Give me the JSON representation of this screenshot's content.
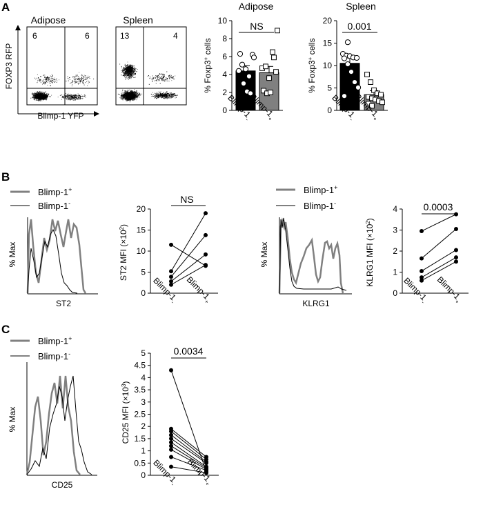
{
  "panels": {
    "a": "A",
    "b": "B",
    "c": "C"
  },
  "flow": {
    "titles": [
      "Adipose",
      "Spleen"
    ],
    "ylabel": "FOXP3 RFP",
    "xlabel": "Blimp-1 YFP",
    "adipose_quadrants": {
      "upper_left": "6",
      "upper_right": "6"
    },
    "spleen_quadrants": {
      "upper_left": "13",
      "upper_right": "4"
    }
  },
  "legends": {
    "b1": {
      "pos": "Blimp-1",
      "pos_sup": "+",
      "neg": "Blimp-1",
      "neg_sup": "-"
    },
    "b2": {
      "pos": "Blimp-1",
      "pos_sup": "+",
      "neg": "Blimp-1",
      "neg_sup": "-"
    },
    "c": {
      "pos": "Blimp-1",
      "pos_sup": "+",
      "neg": "Blimp-1",
      "neg_sup": "-"
    }
  },
  "histograms": [
    {
      "ylabel": "% Max",
      "xlabel": "ST2"
    },
    {
      "ylabel": "% Max",
      "xlabel": "KLRG1"
    },
    {
      "ylabel": "% Max",
      "xlabel": "CD25"
    }
  ],
  "colors": {
    "negative_bar": "#000000",
    "positive_bar": "#808080",
    "pos_line": "#808080",
    "neg_line": "#000000"
  },
  "chart_data": [
    {
      "type": "bar",
      "title": "Adipose",
      "ylabel": "% Foxp3+ cells",
      "ylabel_main": "% Foxp3",
      "ylabel_sup": "+",
      "ylabel_tail": " cells",
      "ylim": [
        0,
        10
      ],
      "yticks": [
        0,
        2,
        4,
        6,
        8,
        10
      ],
      "categories": [
        "Blimp-1-",
        "Blimp-1+"
      ],
      "category_labels": [
        {
          "main": "Blimp-1",
          "sup": "-"
        },
        {
          "main": "Blimp-1",
          "sup": "+"
        }
      ],
      "values": [
        4.4,
        4.2
      ],
      "errors": [
        0.6,
        0.7
      ],
      "points": [
        [
          4.4,
          5.1,
          4.6,
          3.8,
          6.2,
          6.3,
          3.0,
          2.1,
          1.9,
          5.9
        ],
        [
          4.7,
          4.9,
          3.6,
          6.5,
          4.3,
          2.2,
          1.9,
          2.0,
          5.9,
          8.9
        ]
      ],
      "annotation": "NS"
    },
    {
      "type": "bar",
      "title": "Spleen",
      "ylabel": "% Foxp3+ cells",
      "ylabel_main": "% Foxp3",
      "ylabel_sup": "+",
      "ylabel_tail": " cells",
      "ylim": [
        0,
        20
      ],
      "yticks": [
        0,
        5,
        10,
        15,
        20
      ],
      "categories": [
        "Blimp-1-",
        "Blimp-1+"
      ],
      "category_labels": [
        {
          "main": "Blimp-1",
          "sup": "-"
        },
        {
          "main": "Blimp-1",
          "sup": "+"
        }
      ],
      "values": [
        10.5,
        3.5
      ],
      "errors": [
        1.2,
        0.9
      ],
      "points": [
        [
          12.6,
          12.2,
          12.1,
          11.8,
          11.7,
          11.6,
          10.3,
          8.6,
          6.3,
          5.1,
          3.2,
          15.2
        ],
        [
          8.0,
          6.3,
          4.5,
          3.8,
          3.5,
          3.0,
          2.7,
          2.4,
          2.1,
          1.8,
          1.5,
          1.0
        ]
      ],
      "annotation": "0.001"
    },
    {
      "type": "line",
      "ylabel": "ST2 MFI (×10²)",
      "ylabel_main": "ST2 MFI (×10",
      "ylabel_sup": "2",
      "ylabel_tail": ")",
      "ylim": [
        0,
        20
      ],
      "yticks": [
        0,
        5,
        10,
        15,
        20
      ],
      "categories": [
        "Blimp-1-",
        "Blimp-1+"
      ],
      "category_labels": [
        {
          "main": "Blimp-1",
          "sup": "-"
        },
        {
          "main": "Blimp-1",
          "sup": "+"
        }
      ],
      "pairs": [
        [
          11.5,
          6.5
        ],
        [
          5.2,
          19.0
        ],
        [
          3.9,
          13.8
        ],
        [
          2.8,
          9.2
        ],
        [
          2.0,
          6.7
        ]
      ],
      "annotation": "NS"
    },
    {
      "type": "line",
      "ylabel": "KLRG1 MFI (×10²)",
      "ylabel_main": "KLRG1 MFI (×10",
      "ylabel_sup": "2",
      "ylabel_tail": ")",
      "ylim": [
        0,
        4
      ],
      "yticks": [
        0,
        1,
        2,
        3,
        4
      ],
      "categories": [
        "Blimp-1-",
        "Blimp-1+"
      ],
      "category_labels": [
        {
          "main": "Blimp-1",
          "sup": "-"
        },
        {
          "main": "Blimp-1",
          "sup": "+"
        }
      ],
      "pairs": [
        [
          2.95,
          3.75
        ],
        [
          1.65,
          3.05
        ],
        [
          1.05,
          2.05
        ],
        [
          0.75,
          1.7
        ],
        [
          0.6,
          1.5
        ]
      ],
      "annotation": "0.0003"
    },
    {
      "type": "line",
      "ylabel": "CD25 MFI (×10³)",
      "ylabel_main": "CD25 MFI (×10",
      "ylabel_sup": "3",
      "ylabel_tail": ")",
      "ylim": [
        0,
        5
      ],
      "yticks": [
        0,
        0.5,
        1,
        1.5,
        2,
        2.5,
        3,
        3.5,
        4,
        4.5,
        5
      ],
      "ytick_labels": [
        "0",
        "0.5",
        "1",
        "1.5",
        "2",
        "2.5",
        "3",
        "3.5",
        "4",
        "4.5",
        "5"
      ],
      "categories": [
        "Blimp-1-",
        "Blimp-1+"
      ],
      "category_labels": [
        {
          "main": "Blimp-1",
          "sup": "-"
        },
        {
          "main": "Blimp-1",
          "sup": "+"
        }
      ],
      "pairs": [
        [
          4.3,
          0.15
        ],
        [
          1.9,
          0.75
        ],
        [
          1.8,
          0.65
        ],
        [
          1.65,
          0.55
        ],
        [
          1.5,
          0.5
        ],
        [
          1.35,
          0.35
        ],
        [
          1.2,
          0.3
        ],
        [
          1.05,
          0.25
        ],
        [
          0.75,
          0.2
        ],
        [
          0.35,
          0.1
        ]
      ],
      "annotation": "0.0034"
    }
  ]
}
